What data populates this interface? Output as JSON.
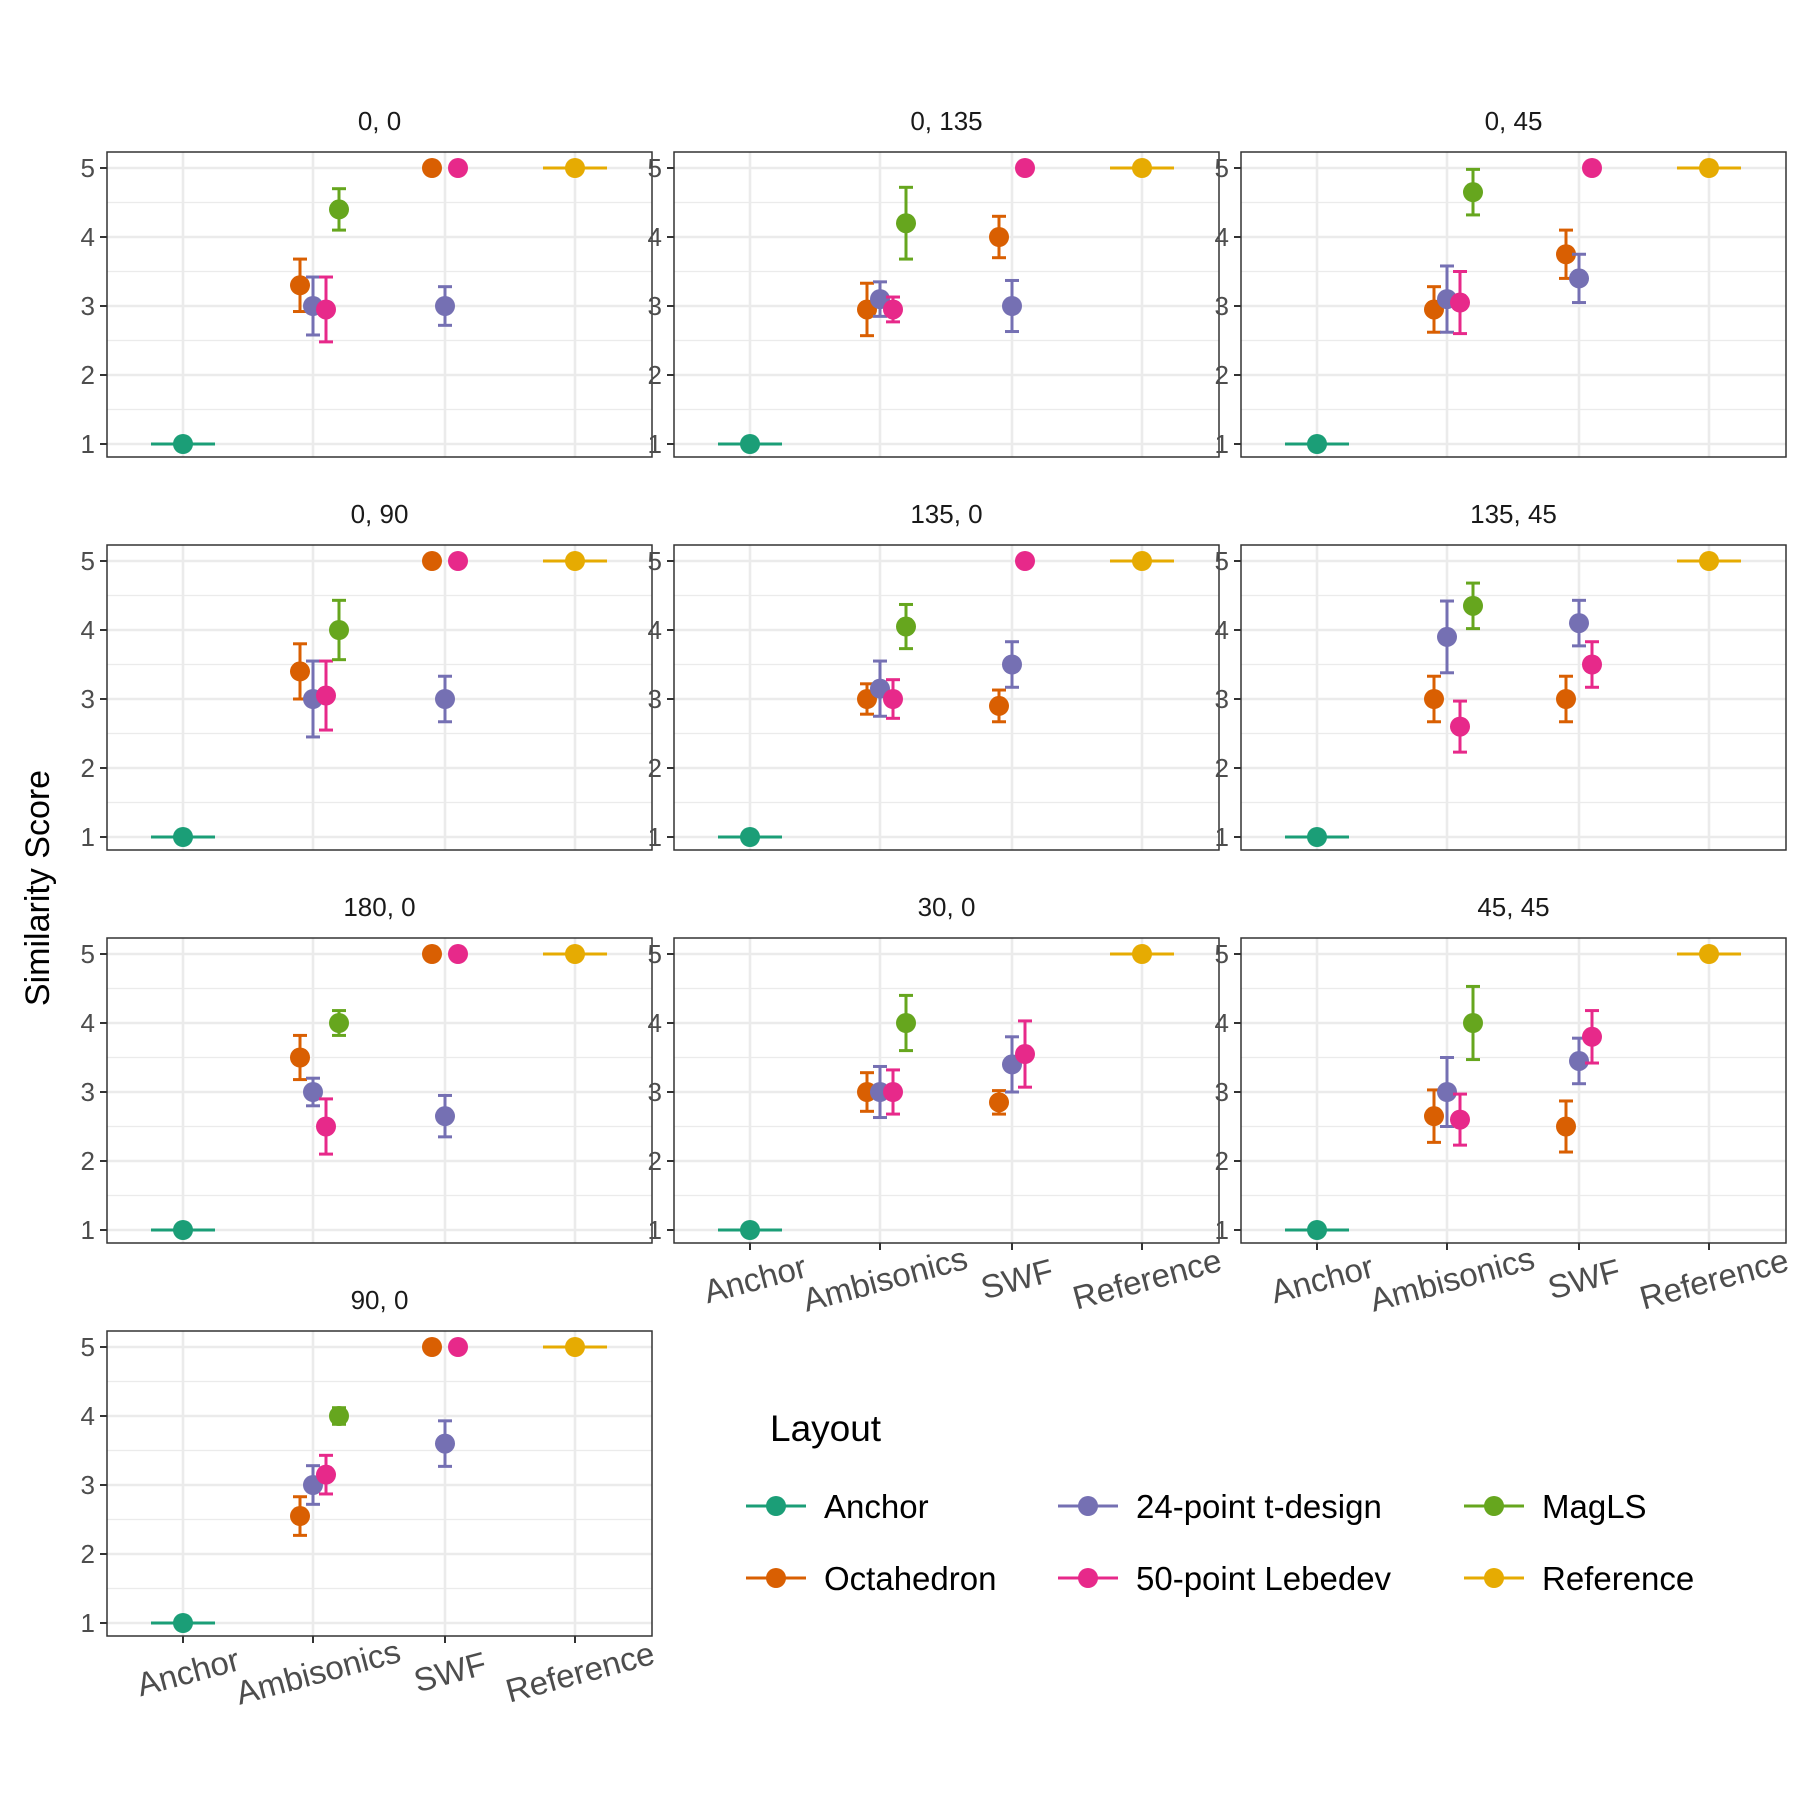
{
  "chart_data": {
    "type": "scatter",
    "title": "",
    "xlabel": "",
    "ylabel": "Similarity Score",
    "ylim": [
      1,
      5
    ],
    "yticks": [
      "1",
      "2",
      "3",
      "4",
      "5"
    ],
    "categories": [
      "Anchor",
      "Ambisonics",
      "SWF",
      "Reference"
    ],
    "legend": {
      "title": "Layout",
      "items": [
        {
          "name": "Anchor",
          "color": "#1b9e77"
        },
        {
          "name": "24-point t-design",
          "color": "#7570b3"
        },
        {
          "name": "MagLS",
          "color": "#66a61e"
        },
        {
          "name": "Octahedron",
          "color": "#d95f02"
        },
        {
          "name": "50-point Lebedev",
          "color": "#e7298a"
        },
        {
          "name": "Reference",
          "color": "#e6ab02"
        }
      ]
    },
    "panels": [
      {
        "title": "0, 0",
        "points": [
          {
            "layout": "Anchor",
            "x": "Anchor",
            "y": 1,
            "lo": 1,
            "hi": 1
          },
          {
            "layout": "Octahedron",
            "x": "Ambisonics",
            "y": 3.3,
            "lo": 2.92,
            "hi": 3.68
          },
          {
            "layout": "24-point t-design",
            "x": "Ambisonics",
            "y": 3.0,
            "lo": 2.58,
            "hi": 3.42
          },
          {
            "layout": "50-point Lebedev",
            "x": "Ambisonics",
            "y": 2.95,
            "lo": 2.48,
            "hi": 3.42
          },
          {
            "layout": "MagLS",
            "x": "Ambisonics",
            "y": 4.4,
            "lo": 4.1,
            "hi": 4.7
          },
          {
            "layout": "Octahedron",
            "x": "SWF",
            "y": 5,
            "lo": 5,
            "hi": 5
          },
          {
            "layout": "24-point t-design",
            "x": "SWF",
            "y": 3.0,
            "lo": 2.72,
            "hi": 3.28
          },
          {
            "layout": "50-point Lebedev",
            "x": "SWF",
            "y": 5,
            "lo": 5,
            "hi": 5
          },
          {
            "layout": "Reference",
            "x": "Reference",
            "y": 5,
            "lo": 5,
            "hi": 5
          }
        ]
      },
      {
        "title": "0, 135",
        "points": [
          {
            "layout": "Anchor",
            "x": "Anchor",
            "y": 1,
            "lo": 1,
            "hi": 1
          },
          {
            "layout": "Octahedron",
            "x": "Ambisonics",
            "y": 2.95,
            "lo": 2.57,
            "hi": 3.33
          },
          {
            "layout": "24-point t-design",
            "x": "Ambisonics",
            "y": 3.1,
            "lo": 2.85,
            "hi": 3.35
          },
          {
            "layout": "50-point Lebedev",
            "x": "Ambisonics",
            "y": 2.95,
            "lo": 2.77,
            "hi": 3.13
          },
          {
            "layout": "MagLS",
            "x": "Ambisonics",
            "y": 4.2,
            "lo": 3.68,
            "hi": 4.72
          },
          {
            "layout": "Octahedron",
            "x": "SWF",
            "y": 4.0,
            "lo": 3.7,
            "hi": 4.3
          },
          {
            "layout": "24-point t-design",
            "x": "SWF",
            "y": 3.0,
            "lo": 2.63,
            "hi": 3.37
          },
          {
            "layout": "50-point Lebedev",
            "x": "SWF",
            "y": 5,
            "lo": 5,
            "hi": 5
          },
          {
            "layout": "Reference",
            "x": "Reference",
            "y": 5,
            "lo": 5,
            "hi": 5
          }
        ]
      },
      {
        "title": "0, 45",
        "points": [
          {
            "layout": "Anchor",
            "x": "Anchor",
            "y": 1,
            "lo": 1,
            "hi": 1
          },
          {
            "layout": "Octahedron",
            "x": "Ambisonics",
            "y": 2.95,
            "lo": 2.62,
            "hi": 3.28
          },
          {
            "layout": "24-point t-design",
            "x": "Ambisonics",
            "y": 3.1,
            "lo": 2.62,
            "hi": 3.58
          },
          {
            "layout": "50-point Lebedev",
            "x": "Ambisonics",
            "y": 3.05,
            "lo": 2.6,
            "hi": 3.5
          },
          {
            "layout": "MagLS",
            "x": "Ambisonics",
            "y": 4.65,
            "lo": 4.32,
            "hi": 4.98
          },
          {
            "layout": "Octahedron",
            "x": "SWF",
            "y": 3.75,
            "lo": 3.4,
            "hi": 4.1
          },
          {
            "layout": "24-point t-design",
            "x": "SWF",
            "y": 3.4,
            "lo": 3.05,
            "hi": 3.75
          },
          {
            "layout": "50-point Lebedev",
            "x": "SWF",
            "y": 5,
            "lo": 5,
            "hi": 5
          },
          {
            "layout": "Reference",
            "x": "Reference",
            "y": 5,
            "lo": 5,
            "hi": 5
          }
        ]
      },
      {
        "title": "0, 90",
        "points": [
          {
            "layout": "Anchor",
            "x": "Anchor",
            "y": 1,
            "lo": 1,
            "hi": 1
          },
          {
            "layout": "Octahedron",
            "x": "Ambisonics",
            "y": 3.4,
            "lo": 3.0,
            "hi": 3.8
          },
          {
            "layout": "24-point t-design",
            "x": "Ambisonics",
            "y": 3.0,
            "lo": 2.45,
            "hi": 3.55
          },
          {
            "layout": "50-point Lebedev",
            "x": "Ambisonics",
            "y": 3.05,
            "lo": 2.55,
            "hi": 3.55
          },
          {
            "layout": "MagLS",
            "x": "Ambisonics",
            "y": 4.0,
            "lo": 3.57,
            "hi": 4.43
          },
          {
            "layout": "Octahedron",
            "x": "SWF",
            "y": 5,
            "lo": 5,
            "hi": 5
          },
          {
            "layout": "24-point t-design",
            "x": "SWF",
            "y": 3.0,
            "lo": 2.67,
            "hi": 3.33
          },
          {
            "layout": "50-point Lebedev",
            "x": "SWF",
            "y": 5,
            "lo": 5,
            "hi": 5
          },
          {
            "layout": "Reference",
            "x": "Reference",
            "y": 5,
            "lo": 5,
            "hi": 5
          }
        ]
      },
      {
        "title": "135, 0",
        "points": [
          {
            "layout": "Anchor",
            "x": "Anchor",
            "y": 1,
            "lo": 1,
            "hi": 1
          },
          {
            "layout": "Octahedron",
            "x": "Ambisonics",
            "y": 3.0,
            "lo": 2.78,
            "hi": 3.22
          },
          {
            "layout": "24-point t-design",
            "x": "Ambisonics",
            "y": 3.15,
            "lo": 2.75,
            "hi": 3.55
          },
          {
            "layout": "50-point Lebedev",
            "x": "Ambisonics",
            "y": 3.0,
            "lo": 2.72,
            "hi": 3.28
          },
          {
            "layout": "MagLS",
            "x": "Ambisonics",
            "y": 4.05,
            "lo": 3.73,
            "hi": 4.37
          },
          {
            "layout": "Octahedron",
            "x": "SWF",
            "y": 2.9,
            "lo": 2.67,
            "hi": 3.13
          },
          {
            "layout": "24-point t-design",
            "x": "SWF",
            "y": 3.5,
            "lo": 3.17,
            "hi": 3.83
          },
          {
            "layout": "50-point Lebedev",
            "x": "SWF",
            "y": 5,
            "lo": 5,
            "hi": 5
          },
          {
            "layout": "Reference",
            "x": "Reference",
            "y": 5,
            "lo": 5,
            "hi": 5
          }
        ]
      },
      {
        "title": "135, 45",
        "points": [
          {
            "layout": "Anchor",
            "x": "Anchor",
            "y": 1,
            "lo": 1,
            "hi": 1
          },
          {
            "layout": "Octahedron",
            "x": "Ambisonics",
            "y": 3.0,
            "lo": 2.67,
            "hi": 3.33
          },
          {
            "layout": "24-point t-design",
            "x": "Ambisonics",
            "y": 3.9,
            "lo": 3.38,
            "hi": 4.42
          },
          {
            "layout": "50-point Lebedev",
            "x": "Ambisonics",
            "y": 2.6,
            "lo": 2.23,
            "hi": 2.97
          },
          {
            "layout": "MagLS",
            "x": "Ambisonics",
            "y": 4.35,
            "lo": 4.02,
            "hi": 4.68
          },
          {
            "layout": "Octahedron",
            "x": "SWF",
            "y": 3.0,
            "lo": 2.67,
            "hi": 3.33
          },
          {
            "layout": "24-point t-design",
            "x": "SWF",
            "y": 4.1,
            "lo": 3.77,
            "hi": 4.43
          },
          {
            "layout": "50-point Lebedev",
            "x": "SWF",
            "y": 3.5,
            "lo": 3.17,
            "hi": 3.83
          },
          {
            "layout": "Reference",
            "x": "Reference",
            "y": 5,
            "lo": 5,
            "hi": 5
          }
        ]
      },
      {
        "title": "180, 0",
        "points": [
          {
            "layout": "Anchor",
            "x": "Anchor",
            "y": 1,
            "lo": 1,
            "hi": 1
          },
          {
            "layout": "Octahedron",
            "x": "Ambisonics",
            "y": 3.5,
            "lo": 3.18,
            "hi": 3.82
          },
          {
            "layout": "24-point t-design",
            "x": "Ambisonics",
            "y": 3.0,
            "lo": 2.8,
            "hi": 3.2
          },
          {
            "layout": "50-point Lebedev",
            "x": "Ambisonics",
            "y": 2.5,
            "lo": 2.1,
            "hi": 2.9
          },
          {
            "layout": "MagLS",
            "x": "Ambisonics",
            "y": 4.0,
            "lo": 3.82,
            "hi": 4.18
          },
          {
            "layout": "Octahedron",
            "x": "SWF",
            "y": 5,
            "lo": 5,
            "hi": 5
          },
          {
            "layout": "24-point t-design",
            "x": "SWF",
            "y": 2.65,
            "lo": 2.35,
            "hi": 2.95
          },
          {
            "layout": "50-point Lebedev",
            "x": "SWF",
            "y": 5,
            "lo": 5,
            "hi": 5
          },
          {
            "layout": "Reference",
            "x": "Reference",
            "y": 5,
            "lo": 5,
            "hi": 5
          }
        ]
      },
      {
        "title": "30, 0",
        "points": [
          {
            "layout": "Anchor",
            "x": "Anchor",
            "y": 1,
            "lo": 1,
            "hi": 1
          },
          {
            "layout": "Octahedron",
            "x": "Ambisonics",
            "y": 3.0,
            "lo": 2.72,
            "hi": 3.28
          },
          {
            "layout": "24-point t-design",
            "x": "Ambisonics",
            "y": 3.0,
            "lo": 2.63,
            "hi": 3.37
          },
          {
            "layout": "50-point Lebedev",
            "x": "Ambisonics",
            "y": 3.0,
            "lo": 2.68,
            "hi": 3.32
          },
          {
            "layout": "MagLS",
            "x": "Ambisonics",
            "y": 4.0,
            "lo": 3.6,
            "hi": 4.4
          },
          {
            "layout": "Octahedron",
            "x": "SWF",
            "y": 2.85,
            "lo": 2.68,
            "hi": 3.02
          },
          {
            "layout": "24-point t-design",
            "x": "SWF",
            "y": 3.4,
            "lo": 3.0,
            "hi": 3.8
          },
          {
            "layout": "50-point Lebedev",
            "x": "SWF",
            "y": 3.55,
            "lo": 3.07,
            "hi": 4.03
          },
          {
            "layout": "Reference",
            "x": "Reference",
            "y": 5,
            "lo": 5,
            "hi": 5
          }
        ]
      },
      {
        "title": "45, 45",
        "points": [
          {
            "layout": "Anchor",
            "x": "Anchor",
            "y": 1,
            "lo": 1,
            "hi": 1
          },
          {
            "layout": "Octahedron",
            "x": "Ambisonics",
            "y": 2.65,
            "lo": 2.27,
            "hi": 3.03
          },
          {
            "layout": "24-point t-design",
            "x": "Ambisonics",
            "y": 3.0,
            "lo": 2.5,
            "hi": 3.5
          },
          {
            "layout": "50-point Lebedev",
            "x": "Ambisonics",
            "y": 2.6,
            "lo": 2.23,
            "hi": 2.97
          },
          {
            "layout": "MagLS",
            "x": "Ambisonics",
            "y": 4.0,
            "lo": 3.47,
            "hi": 4.53
          },
          {
            "layout": "Octahedron",
            "x": "SWF",
            "y": 2.5,
            "lo": 2.13,
            "hi": 2.87
          },
          {
            "layout": "24-point t-design",
            "x": "SWF",
            "y": 3.45,
            "lo": 3.12,
            "hi": 3.78
          },
          {
            "layout": "50-point Lebedev",
            "x": "SWF",
            "y": 3.8,
            "lo": 3.42,
            "hi": 4.18
          },
          {
            "layout": "Reference",
            "x": "Reference",
            "y": 5,
            "lo": 5,
            "hi": 5
          }
        ]
      },
      {
        "title": "90, 0",
        "points": [
          {
            "layout": "Anchor",
            "x": "Anchor",
            "y": 1,
            "lo": 1,
            "hi": 1
          },
          {
            "layout": "Octahedron",
            "x": "Ambisonics",
            "y": 2.55,
            "lo": 2.27,
            "hi": 2.83
          },
          {
            "layout": "24-point t-design",
            "x": "Ambisonics",
            "y": 3.0,
            "lo": 2.72,
            "hi": 3.28
          },
          {
            "layout": "50-point Lebedev",
            "x": "Ambisonics",
            "y": 3.15,
            "lo": 2.87,
            "hi": 3.43
          },
          {
            "layout": "MagLS",
            "x": "Ambisonics",
            "y": 4.0,
            "lo": 3.88,
            "hi": 4.12
          },
          {
            "layout": "Octahedron",
            "x": "SWF",
            "y": 5,
            "lo": 5,
            "hi": 5
          },
          {
            "layout": "24-point t-design",
            "x": "SWF",
            "y": 3.6,
            "lo": 3.27,
            "hi": 3.93
          },
          {
            "layout": "50-point Lebedev",
            "x": "SWF",
            "y": 5,
            "lo": 5,
            "hi": 5
          },
          {
            "layout": "Reference",
            "x": "Reference",
            "y": 5,
            "lo": 5,
            "hi": 5
          }
        ]
      }
    ]
  }
}
